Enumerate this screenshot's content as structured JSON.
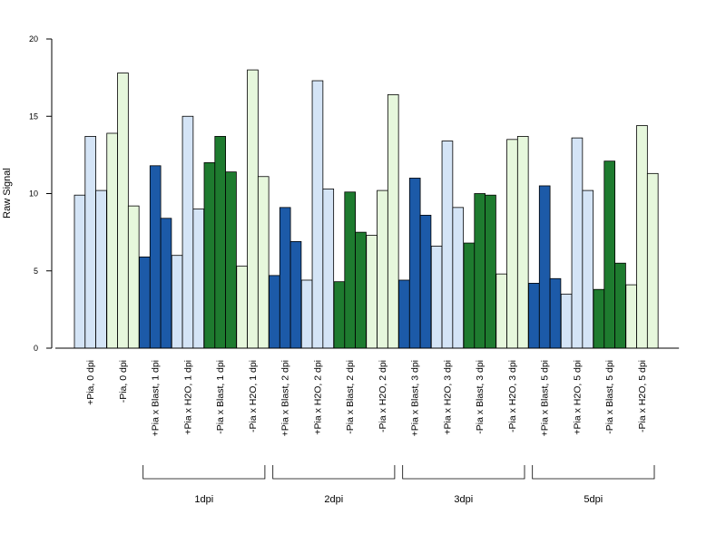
{
  "chart_data": {
    "type": "bar",
    "title": "",
    "xlabel": "",
    "ylabel": "Raw Signal",
    "ylim": [
      0,
      20
    ],
    "yticks": [
      "0",
      "5",
      "10",
      "15",
      "20"
    ],
    "grid": false,
    "legend": "none",
    "colors": {
      "light_blue": "#d4e4f6",
      "dark_blue": "#1c5aa8",
      "light_green": "#e6f7dc",
      "dark_green": "#1e7b2f",
      "outline": "#000000"
    },
    "categories": [
      {
        "label": "+Pia, 0 dpi",
        "color": "light_blue",
        "values": [
          9.9,
          13.7,
          10.2
        ]
      },
      {
        "label": "-Pia, 0 dpi",
        "color": "light_green",
        "values": [
          13.9,
          17.8,
          9.2
        ]
      },
      {
        "label": "+Pia x Blast, 1 dpi",
        "color": "dark_blue",
        "values": [
          5.9,
          11.8,
          8.4
        ]
      },
      {
        "label": "+Pia x H2O, 1 dpi",
        "color": "light_blue",
        "values": [
          6.0,
          15.0,
          9.0
        ]
      },
      {
        "label": "-Pia x Blast, 1 dpi",
        "color": "dark_green",
        "values": [
          12.0,
          13.7,
          11.4
        ]
      },
      {
        "label": "-Pia x H2O, 1 dpi",
        "color": "light_green",
        "values": [
          5.3,
          18.0,
          11.1
        ]
      },
      {
        "label": "+Pia x Blast, 2 dpi",
        "color": "dark_blue",
        "values": [
          4.7,
          9.1,
          6.9
        ]
      },
      {
        "label": "+Pia x H2O, 2 dpi",
        "color": "light_blue",
        "values": [
          4.4,
          17.3,
          10.3
        ]
      },
      {
        "label": "-Pia x Blast, 2 dpi",
        "color": "dark_green",
        "values": [
          4.3,
          10.1,
          7.5
        ]
      },
      {
        "label": "-Pia x H2O, 2 dpi",
        "color": "light_green",
        "values": [
          7.3,
          10.2,
          16.4
        ]
      },
      {
        "label": "+Pia x Blast, 3 dpi",
        "color": "dark_blue",
        "values": [
          4.4,
          11.0,
          8.6
        ]
      },
      {
        "label": "+Pia x H2O, 3 dpi",
        "color": "light_blue",
        "values": [
          6.6,
          13.4,
          9.1
        ]
      },
      {
        "label": "-Pia x Blast, 3 dpi",
        "color": "dark_green",
        "values": [
          6.8,
          10.0,
          9.9
        ]
      },
      {
        "label": "-Pia x H2O, 3 dpi",
        "color": "light_green",
        "values": [
          4.8,
          13.5,
          13.7
        ]
      },
      {
        "label": "+Pia x Blast, 5 dpi",
        "color": "dark_blue",
        "values": [
          4.2,
          10.5,
          4.5
        ]
      },
      {
        "label": "+Pia x H2O, 5 dpi",
        "color": "light_blue",
        "values": [
          3.5,
          13.6,
          10.2
        ]
      },
      {
        "label": "-Pia x Blast, 5 dpi",
        "color": "dark_green",
        "values": [
          3.8,
          12.1,
          5.5
        ]
      },
      {
        "label": "-Pia x H2O, 5 dpi",
        "color": "light_green",
        "values": [
          4.1,
          14.4,
          11.3
        ]
      }
    ],
    "groups": [
      {
        "label": "1dpi",
        "from": 2,
        "to": 5
      },
      {
        "label": "2dpi",
        "from": 6,
        "to": 9
      },
      {
        "label": "3dpi",
        "from": 10,
        "to": 13
      },
      {
        "label": "5dpi",
        "from": 14,
        "to": 17
      }
    ]
  }
}
